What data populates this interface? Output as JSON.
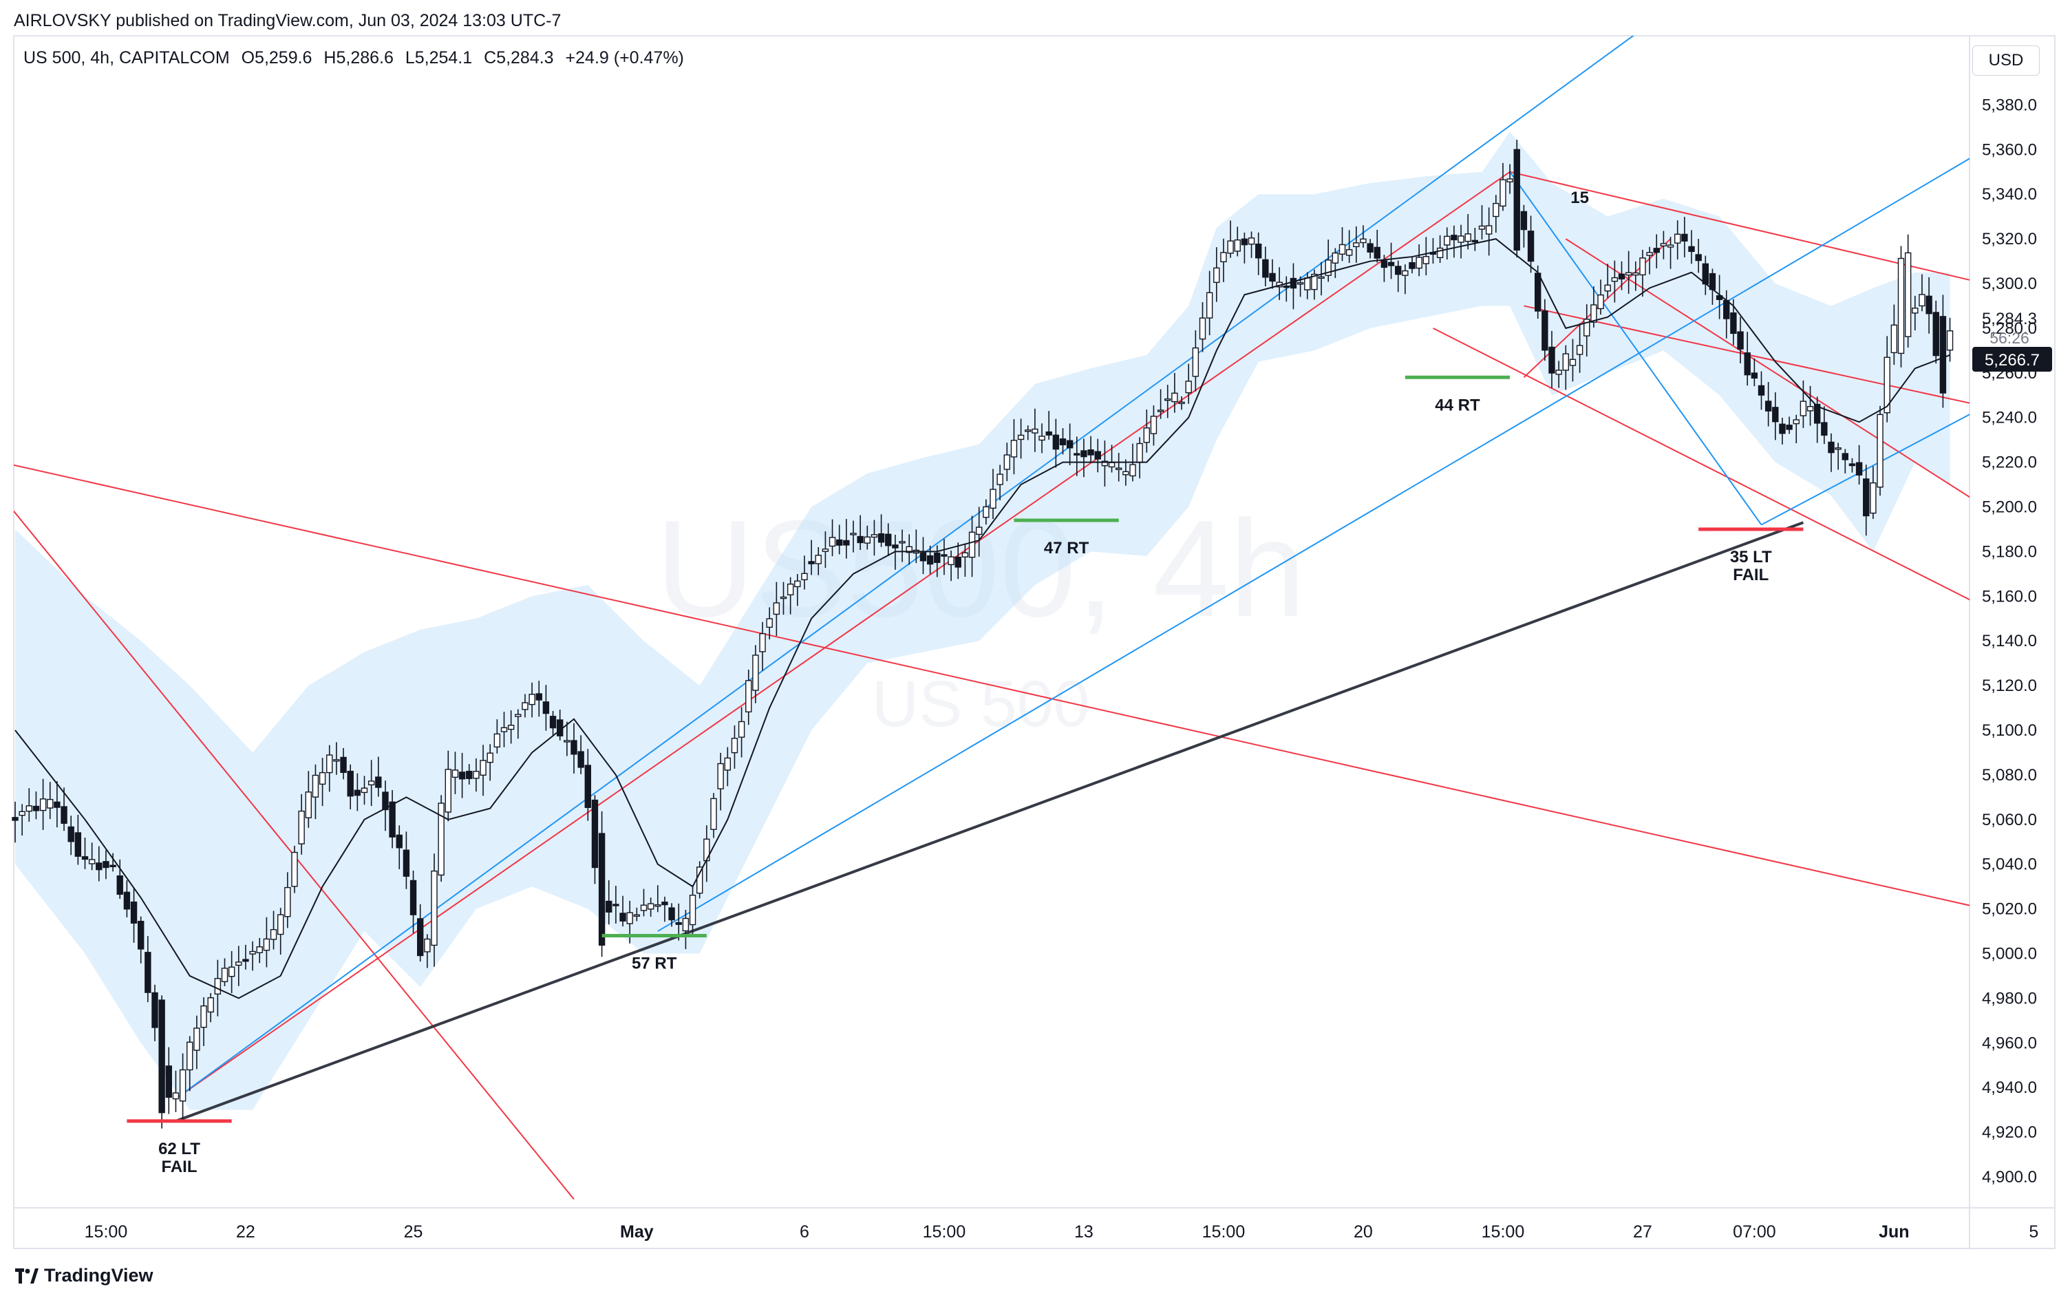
{
  "header": {
    "published": "AIRLOVSKY published on TradingView.com, Jun 03, 2024 13:03 UTC-7"
  },
  "symbol": {
    "name": "US 500, 4h, CAPITALCOM",
    "open": "O5,259.6",
    "high": "H5,286.6",
    "low": "L5,254.1",
    "close": "C5,284.3",
    "change": "+24.9 (+0.47%)"
  },
  "currency": "USD",
  "watermark": {
    "main": "US500, 4h",
    "sub": "US 500"
  },
  "countdown": "56:26",
  "footer": {
    "brand": "TradingView"
  },
  "chart_data": {
    "type": "candlestick",
    "y_axis": {
      "ticks": [
        4900,
        4920,
        4940,
        4960,
        4980,
        5000,
        5020,
        5040,
        5060,
        5080,
        5100,
        5120,
        5140,
        5160,
        5180,
        5200,
        5220,
        5240,
        5260,
        5280,
        5300,
        5320,
        5340,
        5360,
        5380
      ],
      "labels": [
        "4,900.0",
        "4,920.0",
        "4,940.0",
        "4,960.0",
        "4,980.0",
        "5,000.0",
        "5,020.0",
        "5,040.0",
        "5,060.0",
        "5,080.0",
        "5,100.0",
        "5,120.0",
        "5,140.0",
        "5,160.0",
        "5,180.0",
        "5,200.0",
        "5,220.0",
        "5,240.0",
        "5,260.0",
        "5,280.0",
        "5,300.0",
        "5,320.0",
        "5,340.0",
        "5,360.0",
        "5,380.0"
      ],
      "range": [
        4880,
        5400
      ]
    },
    "price_labels": [
      {
        "value": 5284.3,
        "label": "5,284.3"
      },
      {
        "value": 5266.7,
        "label": "5,266.7"
      }
    ],
    "x_axis": {
      "labels": [
        {
          "bar": 13,
          "label": "15:00"
        },
        {
          "bar": 33,
          "label": "22"
        },
        {
          "bar": 57,
          "label": "25"
        },
        {
          "bar": 89,
          "label": "May"
        },
        {
          "bar": 113,
          "label": "6"
        },
        {
          "bar": 133,
          "label": "15:00"
        },
        {
          "bar": 153,
          "label": "13"
        },
        {
          "bar": 173,
          "label": "15:00"
        },
        {
          "bar": 193,
          "label": "20"
        },
        {
          "bar": 213,
          "label": "15:00"
        },
        {
          "bar": 233,
          "label": "27"
        },
        {
          "bar": 249,
          "label": "07:00"
        },
        {
          "bar": 269,
          "label": "Jun"
        },
        {
          "bar": 289,
          "label": "5"
        }
      ]
    },
    "waves": [
      [
        0,
        5060
      ],
      [
        6,
        5070
      ],
      [
        10,
        5040
      ],
      [
        14,
        5040
      ],
      [
        18,
        5010
      ],
      [
        21,
        4955
      ],
      [
        23,
        4930
      ],
      [
        26,
        4965
      ],
      [
        30,
        4990
      ],
      [
        34,
        5000
      ],
      [
        38,
        5010
      ],
      [
        42,
        5070
      ],
      [
        46,
        5090
      ],
      [
        49,
        5070
      ],
      [
        52,
        5080
      ],
      [
        56,
        5040
      ],
      [
        59,
        4990
      ],
      [
        62,
        5080
      ],
      [
        66,
        5080
      ],
      [
        70,
        5100
      ],
      [
        75,
        5115
      ],
      [
        78,
        5100
      ],
      [
        82,
        5080
      ],
      [
        84,
        5025
      ],
      [
        88,
        5015
      ],
      [
        92,
        5025
      ],
      [
        96,
        5010
      ],
      [
        99,
        5045
      ],
      [
        101,
        5080
      ],
      [
        104,
        5100
      ],
      [
        107,
        5140
      ],
      [
        110,
        5160
      ],
      [
        114,
        5175
      ],
      [
        118,
        5185
      ],
      [
        124,
        5188
      ],
      [
        130,
        5178
      ],
      [
        136,
        5175
      ],
      [
        140,
        5205
      ],
      [
        144,
        5235
      ],
      [
        148,
        5230
      ],
      [
        152,
        5225
      ],
      [
        156,
        5220
      ],
      [
        160,
        5215
      ],
      [
        164,
        5245
      ],
      [
        168,
        5250
      ],
      [
        170,
        5280
      ],
      [
        172,
        5305
      ],
      [
        175,
        5320
      ],
      [
        178,
        5318
      ],
      [
        180,
        5300
      ],
      [
        186,
        5300
      ],
      [
        190,
        5315
      ],
      [
        194,
        5318
      ],
      [
        198,
        5305
      ],
      [
        202,
        5310
      ],
      [
        206,
        5320
      ],
      [
        210,
        5322
      ],
      [
        212,
        5330
      ],
      [
        214,
        5350
      ],
      [
        216,
        5330
      ],
      [
        218,
        5300
      ],
      [
        220,
        5260
      ],
      [
        224,
        5270
      ],
      [
        228,
        5300
      ],
      [
        232,
        5305
      ],
      [
        236,
        5318
      ],
      [
        239,
        5322
      ],
      [
        242,
        5305
      ],
      [
        245,
        5290
      ],
      [
        248,
        5265
      ],
      [
        251,
        5245
      ],
      [
        254,
        5232
      ],
      [
        257,
        5248
      ],
      [
        260,
        5228
      ],
      [
        264,
        5218
      ],
      [
        266,
        5192
      ],
      [
        268,
        5260
      ],
      [
        270,
        5285
      ],
      [
        274,
        5295
      ],
      [
        276,
        5262
      ],
      [
        277,
        5280
      ]
    ],
    "emphasized_bars": {
      "bull_tall": [
        270,
        271
      ],
      "bear_tall": [
        21,
        84,
        215,
        276
      ]
    },
    "sma_line": [
      [
        0,
        5100
      ],
      [
        10,
        5060
      ],
      [
        18,
        5025
      ],
      [
        25,
        4990
      ],
      [
        32,
        4980
      ],
      [
        38,
        4990
      ],
      [
        44,
        5030
      ],
      [
        50,
        5060
      ],
      [
        56,
        5070
      ],
      [
        62,
        5060
      ],
      [
        68,
        5065
      ],
      [
        74,
        5090
      ],
      [
        80,
        5105
      ],
      [
        86,
        5080
      ],
      [
        92,
        5040
      ],
      [
        97,
        5030
      ],
      [
        102,
        5060
      ],
      [
        108,
        5110
      ],
      [
        114,
        5150
      ],
      [
        120,
        5170
      ],
      [
        126,
        5180
      ],
      [
        132,
        5180
      ],
      [
        138,
        5185
      ],
      [
        144,
        5210
      ],
      [
        150,
        5220
      ],
      [
        156,
        5220
      ],
      [
        162,
        5220
      ],
      [
        168,
        5240
      ],
      [
        172,
        5270
      ],
      [
        176,
        5295
      ],
      [
        182,
        5300
      ],
      [
        188,
        5305
      ],
      [
        194,
        5310
      ],
      [
        200,
        5312
      ],
      [
        206,
        5316
      ],
      [
        212,
        5320
      ],
      [
        218,
        5305
      ],
      [
        222,
        5280
      ],
      [
        228,
        5285
      ],
      [
        234,
        5298
      ],
      [
        240,
        5305
      ],
      [
        246,
        5290
      ],
      [
        252,
        5265
      ],
      [
        258,
        5245
      ],
      [
        264,
        5238
      ],
      [
        268,
        5245
      ],
      [
        272,
        5262
      ],
      [
        277,
        5268
      ]
    ],
    "band_upper": [
      [
        0,
        5190
      ],
      [
        10,
        5160
      ],
      [
        18,
        5140
      ],
      [
        25,
        5120
      ],
      [
        34,
        5090
      ],
      [
        42,
        5120
      ],
      [
        50,
        5135
      ],
      [
        58,
        5145
      ],
      [
        66,
        5150
      ],
      [
        74,
        5160
      ],
      [
        82,
        5165
      ],
      [
        90,
        5140
      ],
      [
        98,
        5120
      ],
      [
        106,
        5160
      ],
      [
        114,
        5200
      ],
      [
        122,
        5215
      ],
      [
        130,
        5222
      ],
      [
        138,
        5228
      ],
      [
        146,
        5255
      ],
      [
        154,
        5262
      ],
      [
        162,
        5268
      ],
      [
        168,
        5290
      ],
      [
        172,
        5325
      ],
      [
        178,
        5340
      ],
      [
        186,
        5340
      ],
      [
        194,
        5345
      ],
      [
        202,
        5348
      ],
      [
        210,
        5350
      ],
      [
        214,
        5368
      ],
      [
        220,
        5345
      ],
      [
        228,
        5330
      ],
      [
        236,
        5338
      ],
      [
        244,
        5330
      ],
      [
        252,
        5300
      ],
      [
        260,
        5290
      ],
      [
        266,
        5298
      ],
      [
        272,
        5305
      ],
      [
        277,
        5305
      ]
    ],
    "band_lower": [
      [
        0,
        5040
      ],
      [
        10,
        5000
      ],
      [
        18,
        4960
      ],
      [
        25,
        4930
      ],
      [
        34,
        4930
      ],
      [
        42,
        4970
      ],
      [
        50,
        5010
      ],
      [
        58,
        4985
      ],
      [
        66,
        5020
      ],
      [
        74,
        5030
      ],
      [
        82,
        5020
      ],
      [
        90,
        5000
      ],
      [
        98,
        5000
      ],
      [
        106,
        5050
      ],
      [
        114,
        5100
      ],
      [
        122,
        5130
      ],
      [
        130,
        5135
      ],
      [
        138,
        5140
      ],
      [
        146,
        5165
      ],
      [
        154,
        5180
      ],
      [
        162,
        5178
      ],
      [
        168,
        5200
      ],
      [
        172,
        5230
      ],
      [
        178,
        5265
      ],
      [
        186,
        5270
      ],
      [
        194,
        5280
      ],
      [
        202,
        5285
      ],
      [
        210,
        5290
      ],
      [
        214,
        5290
      ],
      [
        220,
        5250
      ],
      [
        228,
        5260
      ],
      [
        236,
        5270
      ],
      [
        244,
        5250
      ],
      [
        252,
        5220
      ],
      [
        260,
        5205
      ],
      [
        266,
        5180
      ],
      [
        272,
        5220
      ],
      [
        277,
        5210
      ]
    ],
    "trendlines": [
      {
        "color": "#f23645",
        "p1": [
          -2,
          5205
        ],
        "p2": [
          80,
          4890
        ]
      },
      {
        "color": "#f23645",
        "p1": [
          -2,
          5220
        ],
        "p2": [
          282,
          5020
        ]
      },
      {
        "color": "#f23645",
        "p1": [
          23,
          4935
        ],
        "p2": [
          214,
          5350
        ]
      },
      {
        "color": "#f23645",
        "p1": [
          214,
          5350
        ],
        "p2": [
          282,
          5300
        ]
      },
      {
        "color": "#f23645",
        "p1": [
          216,
          5290
        ],
        "p2": [
          282,
          5245
        ]
      },
      {
        "color": "#f23645",
        "p1": [
          203,
          5280
        ],
        "p2": [
          282,
          5155
        ]
      },
      {
        "color": "#f23645",
        "p1": [
          222,
          5320
        ],
        "p2": [
          282,
          5200
        ]
      },
      {
        "color": "#f23645",
        "p1": [
          216,
          5258
        ],
        "p2": [
          237,
          5320
        ]
      },
      {
        "color": "#2196f3",
        "p1": [
          23,
          4935
        ],
        "p2": [
          240,
          5430
        ]
      },
      {
        "color": "#2196f3",
        "p1": [
          92,
          5010
        ],
        "p2": [
          282,
          5360
        ]
      },
      {
        "color": "#2196f3",
        "p1": [
          214,
          5350
        ],
        "p2": [
          250,
          5192
        ]
      },
      {
        "color": "#2196f3",
        "p1": [
          250,
          5192
        ],
        "p2": [
          282,
          5245
        ]
      },
      {
        "color": "#363a45",
        "p1": [
          23,
          4925
        ],
        "p2": [
          256,
          5193
        ],
        "width": 4
      }
    ],
    "support_marks": [
      {
        "bar1": 16,
        "bar2": 31,
        "price": 4925,
        "color": "#f23645",
        "label1": "62 LT",
        "label2": "FAIL"
      },
      {
        "bar1": 84,
        "bar2": 99,
        "price": 5008,
        "color": "#4caf50",
        "label1": "57 RT",
        "label2": ""
      },
      {
        "bar1": 143,
        "bar2": 158,
        "price": 5194,
        "color": "#4caf50",
        "label1": "47 RT",
        "label2": ""
      },
      {
        "bar1": 199,
        "bar2": 214,
        "price": 5258,
        "color": "#4caf50",
        "label1": "44 RT",
        "label2": ""
      },
      {
        "bar1": 241,
        "bar2": 256,
        "price": 5190,
        "color": "#f23645",
        "label1": "35 LT",
        "label2": "FAIL"
      }
    ],
    "annotations": [
      {
        "bar": 224,
        "price": 5336,
        "text": "15"
      }
    ]
  }
}
